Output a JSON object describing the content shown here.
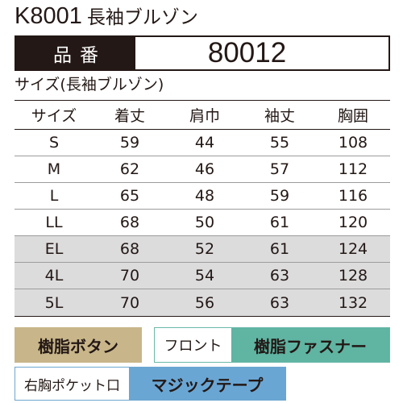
{
  "product": {
    "code": "K8001",
    "name": "長袖ブルゾン"
  },
  "part_number": {
    "label": "品番",
    "value": "80012"
  },
  "size_caption": "サイズ(長袖ブルゾン)",
  "size_table": {
    "headers": [
      "サイズ",
      "着丈",
      "肩巾",
      "袖丈",
      "胸囲"
    ],
    "rows": [
      {
        "size": "S",
        "length": "59",
        "shoulder": "44",
        "sleeve": "55",
        "chest": "108",
        "shaded": false
      },
      {
        "size": "M",
        "length": "62",
        "shoulder": "46",
        "sleeve": "57",
        "chest": "112",
        "shaded": false
      },
      {
        "size": "L",
        "length": "65",
        "shoulder": "48",
        "sleeve": "59",
        "chest": "116",
        "shaded": false
      },
      {
        "size": "LL",
        "length": "68",
        "shoulder": "50",
        "sleeve": "61",
        "chest": "120",
        "shaded": false
      },
      {
        "size": "EL",
        "length": "68",
        "shoulder": "52",
        "sleeve": "61",
        "chest": "124",
        "shaded": true
      },
      {
        "size": "4L",
        "length": "70",
        "shoulder": "54",
        "sleeve": "63",
        "chest": "128",
        "shaded": true
      },
      {
        "size": "5L",
        "length": "70",
        "shoulder": "56",
        "sleeve": "63",
        "chest": "132",
        "shaded": true
      }
    ]
  },
  "features": {
    "buttons": "樹脂ボタン",
    "front_label": "フロント",
    "front_fastener": "樹脂ファスナー",
    "pocket_label": "右胸ポケット口",
    "pocket_closure": "マジックテープ"
  },
  "colors": {
    "text": "#231815",
    "part_label_bg": "#231815",
    "shaded_row": "#dcdcdd",
    "buttons_tag": "#c8b68a",
    "fastener_tag": "#5fb4a2",
    "velcro_tag": "#6aa6d4"
  }
}
